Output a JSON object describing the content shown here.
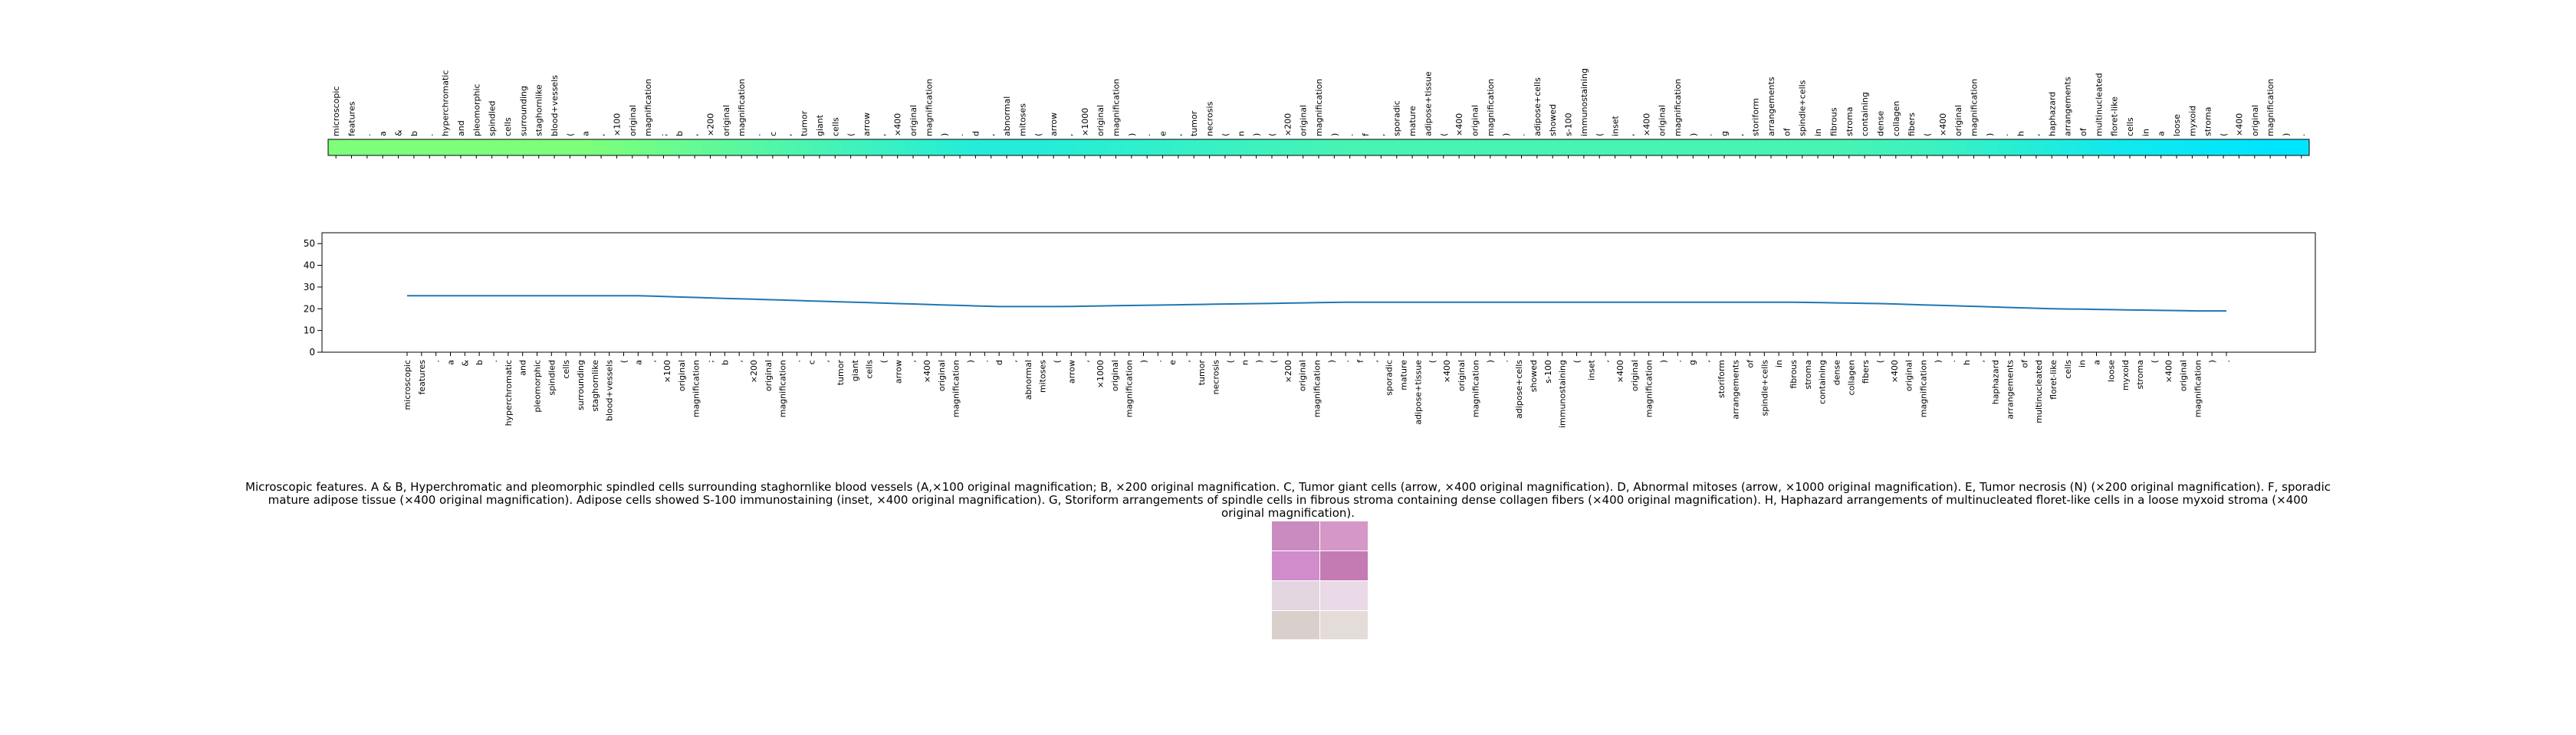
{
  "chart_data": {
    "type": "line",
    "categories": [
      "microscopic",
      "features",
      ".",
      "a",
      "&",
      "b",
      ".",
      "hyperchromatic",
      "and",
      "pleomorphic",
      "spindled",
      "cells",
      "surrounding",
      "staghornlike",
      "blood+vessels",
      "(",
      "a",
      ",",
      "×100",
      "original",
      "magnification",
      ";",
      "b",
      ",",
      "×200",
      "original",
      "magnification",
      ".",
      "c",
      ",",
      "tumor",
      "giant",
      "cells",
      "(",
      "arrow",
      ",",
      "×400",
      "original",
      "magnification",
      ")",
      ".",
      "d",
      ",",
      "abnormal",
      "mitoses",
      "(",
      "arrow",
      ",",
      "×1000",
      "original",
      "magnification",
      ")",
      ".",
      "e",
      ",",
      "tumor",
      "necrosis",
      "(",
      "n",
      ")",
      "(",
      "×200",
      "original",
      "magnification",
      ")",
      ".",
      "f",
      ",",
      "sporadic",
      "mature",
      "adipose+tissue",
      "(",
      "×400",
      "original",
      "magnification",
      ")",
      ".",
      "adipose+cells",
      "showed",
      "s-100",
      "immunostaining",
      "(",
      "inset",
      ",",
      "×400",
      "original",
      "magnification",
      ")",
      ".",
      "g",
      ",",
      "storiform",
      "arrangements",
      "of",
      "spindle+cells",
      "in",
      "fibrous",
      "stroma",
      "containing",
      "dense",
      "collagen",
      "fibers",
      "(",
      "×400",
      "original",
      "magnification",
      ")",
      ".",
      "h",
      ",",
      "haphazard",
      "arrangements",
      "of",
      "multinucleated",
      "floret-like",
      "cells",
      "in",
      "a",
      "loose",
      "myxoid",
      "stroma",
      "(",
      "×400",
      "original",
      "magnification",
      ")",
      "."
    ],
    "values": [
      26,
      26,
      26,
      26,
      26,
      26,
      26,
      26,
      26,
      26,
      26,
      26,
      26,
      26,
      26,
      26,
      26,
      25.8,
      25.6,
      25.4,
      25.2,
      25,
      24.8,
      24.6,
      24.4,
      24.2,
      24,
      23.8,
      23.6,
      23.4,
      23.2,
      23,
      22.8,
      22.6,
      22.4,
      22.2,
      22,
      21.8,
      21.6,
      21.4,
      21.2,
      21,
      21,
      21,
      21,
      21,
      21.1,
      21.2,
      21.3,
      21.4,
      21.5,
      21.6,
      21.7,
      21.8,
      21.9,
      22,
      22.1,
      22.2,
      22.3,
      22.4,
      22.5,
      22.6,
      22.7,
      22.8,
      22.9,
      23,
      23,
      23,
      23,
      23,
      23,
      23,
      23,
      23,
      23,
      23,
      23,
      23,
      23,
      23,
      23,
      23,
      23,
      23,
      23,
      23,
      23,
      23,
      23,
      23,
      23,
      23,
      23,
      23,
      23,
      23,
      23,
      22.9,
      22.8,
      22.7,
      22.6,
      22.5,
      22.4,
      22.2,
      22,
      21.8,
      21.6,
      21.4,
      21.2,
      21,
      20.8,
      20.6,
      20.4,
      20.2,
      20,
      19.9,
      19.8,
      19.7,
      19.6,
      19.5,
      19.4,
      19.3,
      19.2,
      19.1,
      19,
      19,
      19
    ],
    "color": "#1f77b4",
    "colormap": [
      "#00e5ff",
      "#7dff7a"
    ],
    "ylim": [
      0,
      55
    ],
    "yticks": [
      0,
      10,
      20,
      30,
      40,
      50
    ]
  },
  "caption": "Microscopic features. A & B, Hyperchromatic and pleomorphic spindled cells surrounding staghornlike blood vessels (A,×100 original magnification; B, ×200 original magnification. C, Tumor giant cells (arrow, ×400 original magnification). D, Abnormal mitoses (arrow, ×1000 original magnification). E, Tumor necrosis (N) (×200 original magnification). F, sporadic mature adipose tissue (×400 original magnification). Adipose cells showed S-100 immunostaining (inset, ×400 original magnification). G, Storiform arrangements of spindle cells in fibrous stroma containing dense collagen fibers (×400 original magnification). H, Haphazard arrangements of multinucleated floret-like cells in a loose myxoid stroma (×400 original magnification)."
}
